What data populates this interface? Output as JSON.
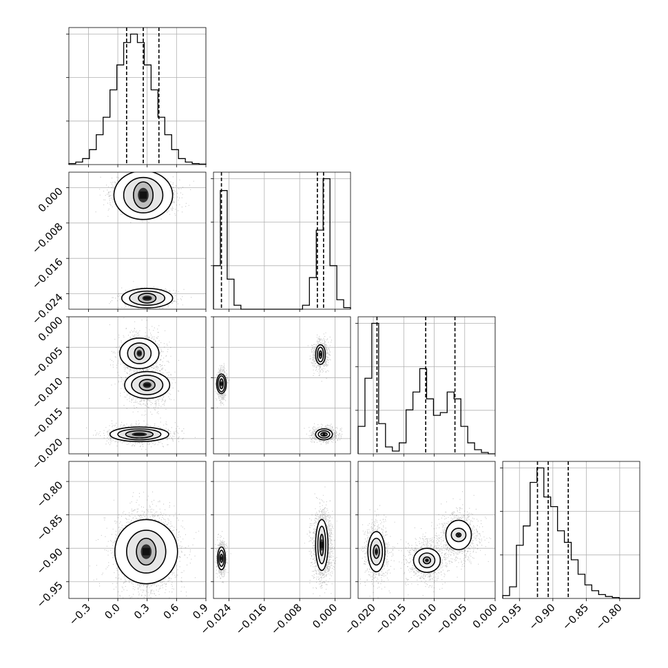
{
  "chart_data": {
    "type": "corner",
    "grid": true,
    "parameters": [
      {
        "range": [
          -0.5,
          0.9
        ],
        "ticks": [
          -0.3,
          0.0,
          0.3,
          0.6,
          0.9
        ],
        "tick_labels": [
          "−0.3",
          "0.0",
          "0.3",
          "0.6",
          "0.9"
        ],
        "quantiles": [
          0.09,
          0.26,
          0.42
        ]
      },
      {
        "range": [
          -0.0275,
          0.0035
        ],
        "ticks": [
          -0.024,
          -0.016,
          -0.008,
          0.0
        ],
        "tick_labels": [
          "−0.024",
          "−0.016",
          "−0.008",
          "0.000"
        ],
        "quantiles": [
          -0.0257,
          -0.004,
          -0.0026
        ]
      },
      {
        "range": [
          -0.0225,
          0.0
        ],
        "ticks": [
          -0.02,
          -0.015,
          -0.01,
          -0.005,
          0.0
        ],
        "tick_labels": [
          "−0.020",
          "−0.015",
          "−0.010",
          "−0.005",
          "0.000"
        ],
        "quantiles": [
          -0.0194,
          -0.0114,
          -0.0066
        ]
      },
      {
        "range": [
          -0.975,
          -0.77
        ],
        "ticks": [
          -0.95,
          -0.9,
          -0.85,
          -0.8
        ],
        "tick_labels": [
          "−0.95",
          "−0.90",
          "−0.85",
          "−0.80"
        ],
        "quantiles": [
          -0.923,
          -0.907,
          -0.877
        ]
      }
    ],
    "diagonal_histograms": [
      {
        "bins": 20,
        "counts": [
          2,
          5,
          12,
          30,
          60,
          95,
          150,
          200,
          245,
          262,
          245,
          200,
          150,
          95,
          60,
          30,
          12,
          5,
          2,
          1
        ]
      },
      {
        "bins": 20,
        "counts": [
          55,
          150,
          38,
          5,
          0,
          0,
          0,
          0,
          0,
          0,
          0,
          0,
          0,
          5,
          40,
          100,
          165,
          55,
          12,
          2
        ]
      },
      {
        "bins": 20,
        "counts": [
          20,
          55,
          95,
          22,
          5,
          2,
          8,
          32,
          45,
          62,
          40,
          28,
          30,
          45,
          40,
          20,
          8,
          3,
          1,
          0
        ]
      },
      {
        "bins": 20,
        "counts": [
          3,
          12,
          55,
          75,
          120,
          135,
          105,
          95,
          70,
          58,
          40,
          25,
          14,
          8,
          4,
          2,
          1,
          0,
          0,
          0
        ]
      }
    ],
    "pairs": [
      {
        "x": 0,
        "y": 1,
        "clusters": [
          {
            "center": [
              0.26,
              -0.0017
            ],
            "spread": [
              0.15,
              0.002
            ],
            "weight": 0.78,
            "contours": [
              [
                0.1,
                0.003
              ],
              [
                0.2,
                0.004
              ],
              [
                0.3,
                0.0055
              ]
            ]
          },
          {
            "center": [
              0.3,
              -0.025
            ],
            "spread": [
              0.15,
              0.0011
            ],
            "weight": 0.22,
            "contours": [
              [
                0.09,
                0.0011
              ],
              [
                0.18,
                0.0016
              ],
              [
                0.26,
                0.0022
              ]
            ]
          }
        ]
      },
      {
        "x": 0,
        "y": 2,
        "clusters": [
          {
            "center": [
              0.22,
              -0.006
            ],
            "spread": [
              0.11,
              0.0018
            ],
            "weight": 0.32,
            "contours": [
              [
                0.05,
                0.001
              ],
              [
                0.12,
                0.0017
              ],
              [
                0.2,
                0.0025
              ]
            ]
          },
          {
            "center": [
              0.3,
              -0.0112
            ],
            "spread": [
              0.12,
              0.0018
            ],
            "weight": 0.32,
            "contours": [
              [
                0.08,
                0.0009
              ],
              [
                0.16,
                0.0016
              ],
              [
                0.23,
                0.0022
              ]
            ]
          },
          {
            "center": [
              0.22,
              -0.0193
            ],
            "spread": [
              0.17,
              0.0008
            ],
            "weight": 0.36,
            "contours": [
              [
                0.14,
                0.0006
              ],
              [
                0.22,
                0.0009
              ],
              [
                0.3,
                0.0012
              ]
            ]
          }
        ]
      },
      {
        "x": 0,
        "y": 3,
        "clusters": [
          {
            "center": [
              0.29,
              -0.905
            ],
            "spread": [
              0.16,
              0.03
            ],
            "weight": 1.0,
            "contours": [
              [
                0.1,
                0.02
              ],
              [
                0.2,
                0.032
              ],
              [
                0.32,
                0.048
              ]
            ]
          }
        ]
      },
      {
        "x": 1,
        "y": 2,
        "clusters": [
          {
            "center": [
              -0.0257,
              -0.011
            ],
            "spread": [
              0.0005,
              0.0012
            ],
            "weight": 0.32,
            "contours": [
              [
                0.0004,
                0.0008
              ],
              [
                0.0008,
                0.0013
              ],
              [
                0.0011,
                0.0016
              ]
            ]
          },
          {
            "center": [
              -0.0033,
              -0.0062
            ],
            "spread": [
              0.0009,
              0.0012
            ],
            "weight": 0.32,
            "contours": [
              [
                0.0003,
                0.0006
              ],
              [
                0.0007,
                0.0012
              ],
              [
                0.0011,
                0.0016
              ]
            ]
          },
          {
            "center": [
              -0.0025,
              -0.0193
            ],
            "spread": [
              0.0014,
              0.0006
            ],
            "weight": 0.36,
            "contours": [
              [
                0.0007,
                0.0003
              ],
              [
                0.0013,
                0.0006
              ],
              [
                0.0019,
                0.0009
              ]
            ]
          }
        ]
      },
      {
        "x": 1,
        "y": 3,
        "clusters": [
          {
            "center": [
              -0.0257,
              -0.915
            ],
            "spread": [
              0.0005,
              0.012
            ],
            "weight": 0.3,
            "contours": [
              [
                0.0003,
                0.006
              ],
              [
                0.0006,
                0.012
              ],
              [
                0.0009,
                0.017
              ]
            ]
          },
          {
            "center": [
              -0.003,
              -0.895
            ],
            "spread": [
              0.0011,
              0.025
            ],
            "weight": 0.7,
            "contours": [
              [
                0.0004,
                0.016
              ],
              [
                0.0009,
                0.028
              ],
              [
                0.0014,
                0.038
              ]
            ]
          }
        ]
      },
      {
        "x": 2,
        "y": 3,
        "clusters": [
          {
            "center": [
              -0.0195,
              -0.905
            ],
            "spread": [
              0.001,
              0.022
            ],
            "weight": 0.3,
            "contours": [
              [
                0.0005,
                0.01
              ],
              [
                0.001,
                0.02
              ],
              [
                0.0014,
                0.03
              ]
            ]
          },
          {
            "center": [
              -0.0112,
              -0.918
            ],
            "spread": [
              0.0017,
              0.016
            ],
            "weight": 0.35,
            "contours": [
              [
                0.0006,
                0.005
              ],
              [
                0.0013,
                0.011
              ],
              [
                0.0022,
                0.018
              ]
            ]
          },
          {
            "center": [
              -0.006,
              -0.88
            ],
            "spread": [
              0.0016,
              0.018
            ],
            "weight": 0.35,
            "contours": [
              [
                0.0004,
                0.003
              ],
              [
                0.0012,
                0.01
              ],
              [
                0.0021,
                0.022
              ]
            ]
          }
        ]
      }
    ]
  }
}
